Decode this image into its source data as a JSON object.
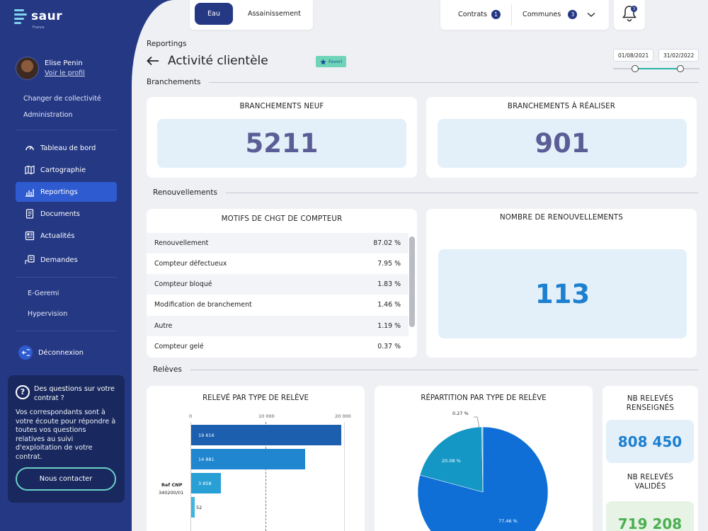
{
  "brand": {
    "name": "saur",
    "country": "France"
  },
  "user": {
    "name": "Elise Penin",
    "profile_link": "Voir le profil"
  },
  "sidebar": {
    "links_top": [
      "Changer de collectivité",
      "Administration"
    ],
    "nav": [
      {
        "label": "Tableau de bord",
        "icon": "gauge-icon"
      },
      {
        "label": "Cartographie",
        "icon": "map-icon"
      },
      {
        "label": "Reportings",
        "icon": "chart-icon",
        "active": true
      },
      {
        "label": "Documents",
        "icon": "document-icon"
      },
      {
        "label": "Actualités",
        "icon": "news-icon"
      },
      {
        "label": "Demandes",
        "icon": "request-icon"
      }
    ],
    "links_bottom": [
      "E-Geremi",
      "Hypervision"
    ],
    "logout": "Déconnexion"
  },
  "help": {
    "question": "Des questions sur votre contrat ?",
    "text": "Vos correspondants sont à votre écoute pour répondre à toutes vos questions relatives au suivi d'exploitation de votre contrat.",
    "button": "Nous contacter"
  },
  "topbar": {
    "toggle": {
      "active": "Eau",
      "other": "Assainissement"
    },
    "filters": [
      {
        "label": "Contrats",
        "count": "1"
      },
      {
        "label": "Communes",
        "count": "3"
      }
    ],
    "notifications": "3"
  },
  "header": {
    "breadcrumb": "Reportings",
    "title": "Activité clientèle",
    "favorite": "Favori",
    "date_start": "01/08/2021",
    "date_end": "31/02/2022"
  },
  "sections": {
    "branchements": "Branchements",
    "renouvellements": "Renouvellements",
    "releves": "Relèves"
  },
  "kpis": {
    "branchements_neuf": {
      "title": "BRANCHEMENTS NEUF",
      "value": "5211"
    },
    "branchements_realiser": {
      "title": "BRANCHEMENTS À RÉALISER",
      "value": "901"
    },
    "nb_renouvellements": {
      "title": "NOMBRE DE RENOUVELLEMENTS",
      "value": "113"
    },
    "nb_releves_renseignes": {
      "title": "NB RELEVÉS RENSEIGNÉS",
      "value": "808 450"
    },
    "nb_releves_valides": {
      "title": "NB RELEVÉS VALIDÉS",
      "value": "719 208"
    }
  },
  "motifs": {
    "title": "MOTIFS DE CHGT DE COMPTEUR",
    "rows": [
      {
        "label": "Renouvellement",
        "value": "87.02 %"
      },
      {
        "label": "Compteur défectueux",
        "value": "7.95 %"
      },
      {
        "label": "Compteur bloqué",
        "value": "1.83 %"
      },
      {
        "label": "Modification de branchement",
        "value": "1.46 %"
      },
      {
        "label": "Autre",
        "value": "1.19 %"
      },
      {
        "label": "Compteur gelé",
        "value": "0.37 %"
      }
    ]
  },
  "colors": {
    "sidebar": "#253884",
    "accent": "#2f5bd0",
    "teal": "#6ad0c6",
    "kpi_bg": "#e3f0fa",
    "kpi_text_purple": "#5b5e96",
    "kpi_text_blue": "#1c7fd0",
    "kpi_text_green": "#4caf50"
  },
  "chart_data": [
    {
      "type": "bar",
      "orientation": "horizontal",
      "title": "RELEVÉ PAR TYPE DE RELÈVE",
      "x_ticks": [
        "0",
        "10 000",
        "20 000"
      ],
      "xlim": [
        0,
        20000
      ],
      "group_label": "Ref CNP",
      "group_sublabel": "340200/01",
      "values": [
        19616,
        14881,
        3858,
        52
      ],
      "value_labels": [
        "19 616",
        "14 881",
        "3 858",
        "52"
      ],
      "colors": [
        "#1b5fae",
        "#1f86cf",
        "#28a0d6",
        "#3fb5e0"
      ]
    },
    {
      "type": "pie",
      "title": "RÉPARTITION PAR TYPE DE RELÈVE",
      "slices": [
        {
          "label": "77.46 %",
          "value": 77.46,
          "color": "#0f6fd6"
        },
        {
          "label": "20.08 %",
          "value": 20.08,
          "color": "#1597c5"
        },
        {
          "label": "0.27 %",
          "value": 0.27,
          "color": "#8fc7e8"
        }
      ]
    }
  ]
}
